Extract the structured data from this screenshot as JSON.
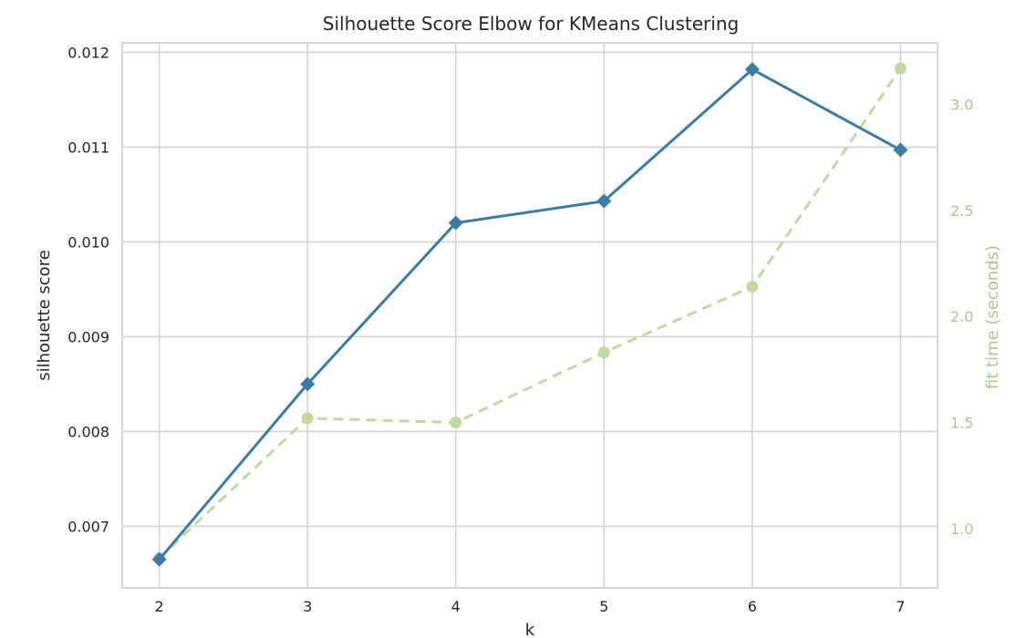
{
  "colors": {
    "score_line": "#3b7ca6",
    "fit_time_line": "#bfdb9d",
    "fit_time_text": "#aac98a",
    "grid": "#d2d2d2",
    "frame": "#d6d6d6",
    "text": "#262626"
  },
  "chart_data": {
    "type": "line",
    "title": "Silhouette Score Elbow for KMeans Clustering",
    "xlabel": "k",
    "ylabel": "silhouette score",
    "y2label": "fit time (seconds)",
    "x": [
      2,
      3,
      4,
      5,
      6,
      7
    ],
    "x_ticks": [
      "2",
      "3",
      "4",
      "5",
      "6",
      "7"
    ],
    "xlim": [
      1.75,
      7.25
    ],
    "ylim": [
      0.00635,
      0.0121
    ],
    "y_ticks": [
      "0.007",
      "0.008",
      "0.009",
      "0.010",
      "0.011",
      "0.012"
    ],
    "y2lim": [
      0.72,
      3.29
    ],
    "y2_ticks": [
      "1.0",
      "1.5",
      "2.0",
      "2.5",
      "3.0"
    ],
    "grid": true,
    "series": [
      {
        "axis": "left",
        "style": "solid",
        "marker": "diamond",
        "values": [
          0.00665,
          0.0085,
          0.0102,
          0.01043,
          0.01182,
          0.01097
        ]
      },
      {
        "axis": "right",
        "style": "dashed",
        "marker": "circle",
        "values": [
          0.86,
          1.52,
          1.5,
          1.83,
          2.14,
          3.17
        ]
      }
    ]
  }
}
